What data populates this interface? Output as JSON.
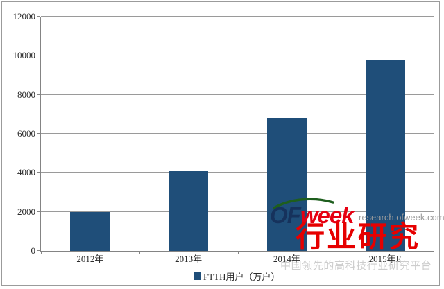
{
  "chart_data": {
    "type": "bar",
    "title": "",
    "xlabel": "",
    "ylabel": "",
    "categories": [
      "2012年",
      "2013年",
      "2014年",
      "2015年E"
    ],
    "series": [
      {
        "name": "FTTH用户（万户）",
        "values": [
          2000,
          4100,
          6800,
          9800
        ]
      }
    ],
    "ylim": [
      0,
      12000
    ],
    "yticks": [
      0,
      2000,
      4000,
      6000,
      8000,
      10000,
      12000
    ],
    "grid": true,
    "legend_position": "bottom",
    "bar_color": "#1f4e79",
    "gridline_color": "#9a9a9a",
    "axis_color": "#848484",
    "tick_label_color": "#2b2b2b"
  },
  "legend": {
    "label": "FTTH用户（万户）",
    "swatch_color": "#1f4e79"
  },
  "watermark": {
    "logo_of": "OF",
    "logo_week": "week",
    "logo_of_color": "#16325c",
    "logo_week_color": "#e60012",
    "swoosh_color": "#1e5e1e",
    "url_text": "research.ofweek.com",
    "url_color": "#9c9c9c",
    "headline": "行业研究",
    "headline_color": "#e60000",
    "tagline": "中国领先的高科技行业研究平台",
    "tagline_color": "#cdcdcd"
  }
}
